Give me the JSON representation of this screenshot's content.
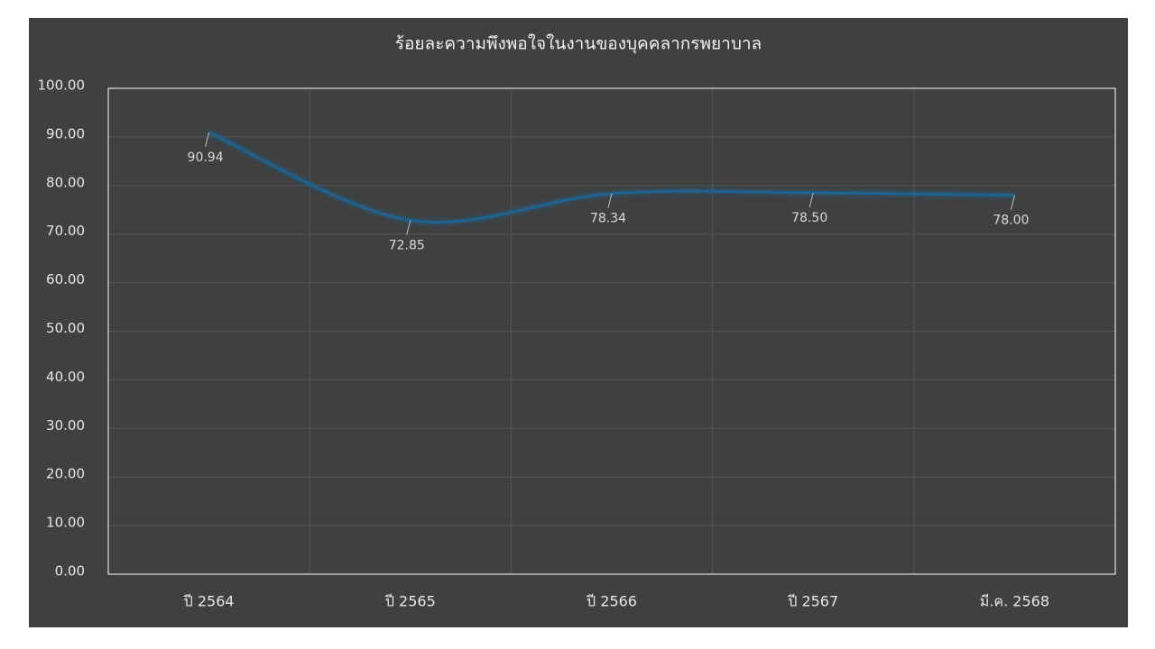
{
  "chart_data": {
    "type": "line",
    "title": "ร้อยละความพึงพอใจในงานของบุคคลากรพยาบาล",
    "categories": [
      "ปี 2564",
      "ปี 2565",
      "ปี 2566",
      "ปี 2567",
      "มี.ค. 2568"
    ],
    "values": [
      90.94,
      72.85,
      78.34,
      78.5,
      78
    ],
    "value_labels": [
      "90.94",
      "72.85",
      "78.34",
      "78.50",
      "78.00"
    ],
    "color": "#1f6391",
    "smooth": true,
    "ylim": [
      0,
      100
    ],
    "yticks": [
      {
        "value": 0,
        "label": "0.00"
      },
      {
        "value": 10,
        "label": "10.00"
      },
      {
        "value": 20,
        "label": "20.00"
      },
      {
        "value": 30,
        "label": "30.00"
      },
      {
        "value": 40,
        "label": "40.00"
      },
      {
        "value": 50,
        "label": "50.00"
      },
      {
        "value": 60,
        "label": "60.00"
      },
      {
        "value": 70,
        "label": "70.00"
      },
      {
        "value": 80,
        "label": "80.00"
      },
      {
        "value": 90,
        "label": "90.00"
      },
      {
        "value": 100,
        "label": "100.00"
      }
    ],
    "grid": true
  }
}
